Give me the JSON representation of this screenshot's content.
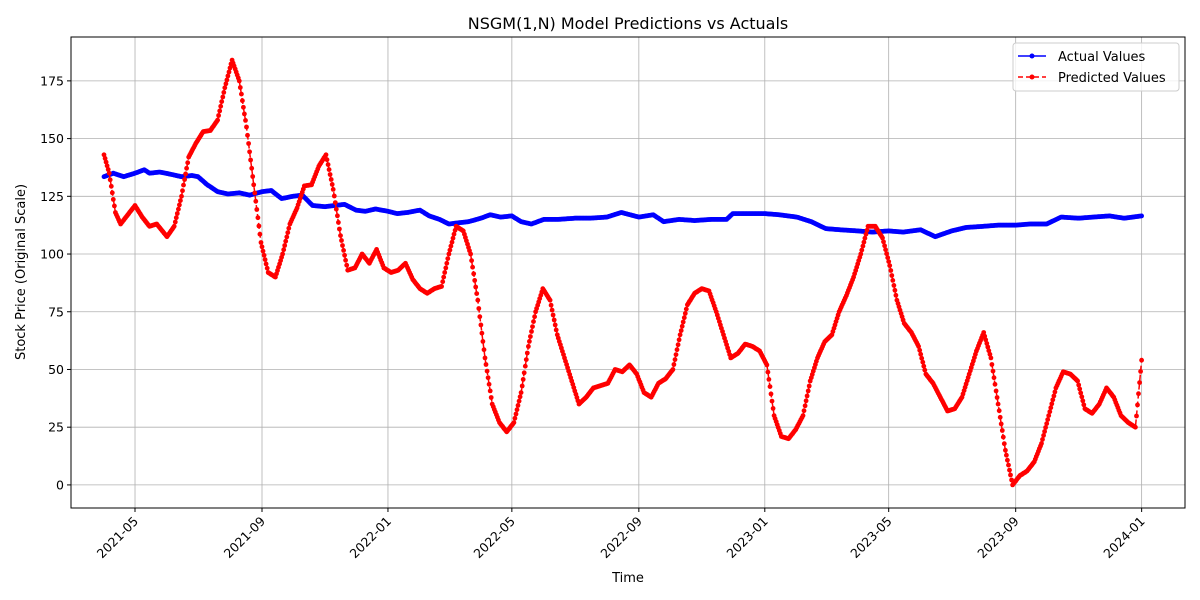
{
  "chart_data": {
    "type": "line",
    "title": "NSGM(1,N) Model Predictions vs Actuals",
    "xlabel": "Time",
    "ylabel": "Stock Price (Original Scale)",
    "xlim": [
      "2021-02-28",
      "2024-02-12"
    ],
    "ylim": [
      -10,
      194
    ],
    "grid": true,
    "legend_position": "top-right",
    "x_ticks": [
      "2021-05",
      "2021-09",
      "2022-01",
      "2022-05",
      "2022-09",
      "2023-01",
      "2023-05",
      "2023-09",
      "2024-01"
    ],
    "y_ticks": [
      0,
      25,
      50,
      75,
      100,
      125,
      150,
      175
    ],
    "series": [
      {
        "name": "Actual Values",
        "color": "#0000ff",
        "marker": "circle",
        "linestyle": "solid",
        "points": [
          [
            "2021-04-01",
            133.5
          ],
          [
            "2021-04-10",
            135.0
          ],
          [
            "2021-04-20",
            133.5
          ],
          [
            "2021-05-01",
            135.0
          ],
          [
            "2021-05-10",
            136.5
          ],
          [
            "2021-05-15",
            135.0
          ],
          [
            "2021-05-25",
            135.5
          ],
          [
            "2021-06-05",
            134.5
          ],
          [
            "2021-06-15",
            133.5
          ],
          [
            "2021-06-25",
            134.0
          ],
          [
            "2021-07-01",
            133.5
          ],
          [
            "2021-07-10",
            130.0
          ],
          [
            "2021-07-20",
            127.0
          ],
          [
            "2021-07-30",
            126.0
          ],
          [
            "2021-08-10",
            126.5
          ],
          [
            "2021-08-20",
            125.5
          ],
          [
            "2021-09-01",
            127.0
          ],
          [
            "2021-09-10",
            127.5
          ],
          [
            "2021-09-20",
            124.0
          ],
          [
            "2021-10-01",
            125.0
          ],
          [
            "2021-10-10",
            125.5
          ],
          [
            "2021-10-20",
            121.0
          ],
          [
            "2021-11-01",
            120.5
          ],
          [
            "2021-11-10",
            121.0
          ],
          [
            "2021-11-20",
            121.5
          ],
          [
            "2021-12-01",
            119.0
          ],
          [
            "2021-12-10",
            118.5
          ],
          [
            "2021-12-20",
            119.5
          ],
          [
            "2022-01-01",
            118.5
          ],
          [
            "2022-01-10",
            117.5
          ],
          [
            "2022-01-20",
            118.0
          ],
          [
            "2022-02-01",
            119.0
          ],
          [
            "2022-02-10",
            116.5
          ],
          [
            "2022-02-20",
            115.0
          ],
          [
            "2022-03-01",
            113.0
          ],
          [
            "2022-03-10",
            113.5
          ],
          [
            "2022-03-20",
            114.0
          ],
          [
            "2022-04-01",
            115.5
          ],
          [
            "2022-04-10",
            117.0
          ],
          [
            "2022-04-20",
            116.0
          ],
          [
            "2022-05-01",
            116.5
          ],
          [
            "2022-05-10",
            114.0
          ],
          [
            "2022-05-20",
            113.0
          ],
          [
            "2022-06-01",
            115.0
          ],
          [
            "2022-06-15",
            115.0
          ],
          [
            "2022-07-01",
            115.5
          ],
          [
            "2022-07-15",
            115.5
          ],
          [
            "2022-08-01",
            116.0
          ],
          [
            "2022-08-15",
            118.0
          ],
          [
            "2022-09-01",
            116.0
          ],
          [
            "2022-09-15",
            117.0
          ],
          [
            "2022-09-25",
            114.0
          ],
          [
            "2022-10-10",
            115.0
          ],
          [
            "2022-10-25",
            114.5
          ],
          [
            "2022-11-10",
            115.0
          ],
          [
            "2022-11-25",
            115.0
          ],
          [
            "2022-12-01",
            117.5
          ],
          [
            "2022-12-15",
            117.5
          ],
          [
            "2023-01-01",
            117.5
          ],
          [
            "2023-01-15",
            117.0
          ],
          [
            "2023-02-01",
            116.0
          ],
          [
            "2023-02-15",
            114.0
          ],
          [
            "2023-03-01",
            111.0
          ],
          [
            "2023-03-15",
            110.5
          ],
          [
            "2023-04-01",
            110.0
          ],
          [
            "2023-04-15",
            109.5
          ],
          [
            "2023-05-01",
            110.0
          ],
          [
            "2023-05-15",
            109.5
          ],
          [
            "2023-06-01",
            110.5
          ],
          [
            "2023-06-15",
            107.5
          ],
          [
            "2023-07-01",
            110.0
          ],
          [
            "2023-07-15",
            111.5
          ],
          [
            "2023-08-01",
            112.0
          ],
          [
            "2023-08-15",
            112.5
          ],
          [
            "2023-09-01",
            112.5
          ],
          [
            "2023-09-15",
            113.0
          ],
          [
            "2023-10-01",
            113.0
          ],
          [
            "2023-10-15",
            116.0
          ],
          [
            "2023-11-01",
            115.5
          ],
          [
            "2023-11-15",
            116.0
          ],
          [
            "2023-12-01",
            116.5
          ],
          [
            "2023-12-15",
            115.5
          ],
          [
            "2024-01-01",
            116.5
          ]
        ]
      },
      {
        "name": "Predicted Values",
        "color": "#ff0000",
        "marker": "circle",
        "linestyle": "dashed",
        "points": [
          [
            "2021-04-01",
            143.0
          ],
          [
            "2021-04-06",
            135.0
          ],
          [
            "2021-04-12",
            118.0
          ],
          [
            "2021-04-17",
            113.0
          ],
          [
            "2021-04-24",
            117.0
          ],
          [
            "2021-05-01",
            121.0
          ],
          [
            "2021-05-08",
            116.0
          ],
          [
            "2021-05-15",
            112.0
          ],
          [
            "2021-05-22",
            113.0
          ],
          [
            "2021-06-01",
            107.5
          ],
          [
            "2021-06-08",
            112.0
          ],
          [
            "2021-06-15",
            125.0
          ],
          [
            "2021-06-22",
            142.0
          ],
          [
            "2021-06-29",
            148.0
          ],
          [
            "2021-07-06",
            153.0
          ],
          [
            "2021-07-13",
            153.5
          ],
          [
            "2021-07-20",
            158.0
          ],
          [
            "2021-07-27",
            172.0
          ],
          [
            "2021-08-03",
            184.0
          ],
          [
            "2021-08-10",
            175.0
          ],
          [
            "2021-08-17",
            155.0
          ],
          [
            "2021-08-24",
            130.0
          ],
          [
            "2021-08-31",
            105.0
          ],
          [
            "2021-09-07",
            92.0
          ],
          [
            "2021-09-14",
            90.0
          ],
          [
            "2021-09-21",
            100.0
          ],
          [
            "2021-09-28",
            113.0
          ],
          [
            "2021-10-05",
            120.0
          ],
          [
            "2021-10-12",
            129.5
          ],
          [
            "2021-10-19",
            130.0
          ],
          [
            "2021-10-26",
            138.0
          ],
          [
            "2021-11-02",
            143.0
          ],
          [
            "2021-11-09",
            128.0
          ],
          [
            "2021-11-16",
            108.0
          ],
          [
            "2021-11-23",
            93.0
          ],
          [
            "2021-11-30",
            94.0
          ],
          [
            "2021-12-07",
            100.0
          ],
          [
            "2021-12-14",
            96.0
          ],
          [
            "2021-12-21",
            102.0
          ],
          [
            "2021-12-28",
            94.0
          ],
          [
            "2022-01-04",
            92.0
          ],
          [
            "2022-01-11",
            93.0
          ],
          [
            "2022-01-18",
            96.0
          ],
          [
            "2022-01-25",
            89.0
          ],
          [
            "2022-02-01",
            85.0
          ],
          [
            "2022-02-08",
            83.0
          ],
          [
            "2022-02-15",
            85.0
          ],
          [
            "2022-02-22",
            86.0
          ],
          [
            "2022-03-01",
            100.0
          ],
          [
            "2022-03-08",
            112.0
          ],
          [
            "2022-03-15",
            110.0
          ],
          [
            "2022-03-22",
            100.0
          ],
          [
            "2022-03-29",
            80.0
          ],
          [
            "2022-04-05",
            55.0
          ],
          [
            "2022-04-12",
            35.0
          ],
          [
            "2022-04-19",
            27.0
          ],
          [
            "2022-04-26",
            23.0
          ],
          [
            "2022-05-03",
            27.0
          ],
          [
            "2022-05-10",
            40.0
          ],
          [
            "2022-05-17",
            60.0
          ],
          [
            "2022-05-24",
            75.0
          ],
          [
            "2022-05-31",
            85.0
          ],
          [
            "2022-06-07",
            80.0
          ],
          [
            "2022-06-14",
            65.0
          ],
          [
            "2022-06-21",
            55.0
          ],
          [
            "2022-06-28",
            45.0
          ],
          [
            "2022-07-05",
            35.0
          ],
          [
            "2022-07-12",
            38.0
          ],
          [
            "2022-07-19",
            42.0
          ],
          [
            "2022-07-26",
            43.0
          ],
          [
            "2022-08-02",
            44.0
          ],
          [
            "2022-08-09",
            50.0
          ],
          [
            "2022-08-16",
            49.0
          ],
          [
            "2022-08-23",
            52.0
          ],
          [
            "2022-08-30",
            48.0
          ],
          [
            "2022-09-06",
            40.0
          ],
          [
            "2022-09-13",
            38.0
          ],
          [
            "2022-09-20",
            44.0
          ],
          [
            "2022-09-27",
            46.0
          ],
          [
            "2022-10-04",
            50.0
          ],
          [
            "2022-10-11",
            65.0
          ],
          [
            "2022-10-18",
            78.0
          ],
          [
            "2022-10-25",
            83.0
          ],
          [
            "2022-11-01",
            85.0
          ],
          [
            "2022-11-08",
            84.0
          ],
          [
            "2022-11-15",
            75.0
          ],
          [
            "2022-11-22",
            65.0
          ],
          [
            "2022-11-29",
            55.0
          ],
          [
            "2022-12-06",
            57.0
          ],
          [
            "2022-12-13",
            61.0
          ],
          [
            "2022-12-20",
            60.0
          ],
          [
            "2022-12-27",
            58.0
          ],
          [
            "2023-01-03",
            52.0
          ],
          [
            "2023-01-10",
            30.0
          ],
          [
            "2023-01-17",
            21.0
          ],
          [
            "2023-01-24",
            20.0
          ],
          [
            "2023-01-31",
            24.0
          ],
          [
            "2023-02-07",
            30.0
          ],
          [
            "2023-02-14",
            45.0
          ],
          [
            "2023-02-21",
            55.0
          ],
          [
            "2023-02-28",
            62.0
          ],
          [
            "2023-03-07",
            65.0
          ],
          [
            "2023-03-14",
            75.0
          ],
          [
            "2023-03-21",
            82.0
          ],
          [
            "2023-03-28",
            90.0
          ],
          [
            "2023-04-04",
            100.0
          ],
          [
            "2023-04-11",
            112.0
          ],
          [
            "2023-04-18",
            112.0
          ],
          [
            "2023-04-25",
            107.0
          ],
          [
            "2023-05-02",
            95.0
          ],
          [
            "2023-05-09",
            80.0
          ],
          [
            "2023-05-16",
            70.0
          ],
          [
            "2023-05-23",
            66.0
          ],
          [
            "2023-05-30",
            60.0
          ],
          [
            "2023-06-06",
            48.0
          ],
          [
            "2023-06-13",
            44.0
          ],
          [
            "2023-06-20",
            38.0
          ],
          [
            "2023-06-27",
            32.0
          ],
          [
            "2023-07-04",
            33.0
          ],
          [
            "2023-07-11",
            38.0
          ],
          [
            "2023-07-18",
            48.0
          ],
          [
            "2023-07-25",
            58.0
          ],
          [
            "2023-08-01",
            66.0
          ],
          [
            "2023-08-08",
            55.0
          ],
          [
            "2023-08-15",
            35.0
          ],
          [
            "2023-08-22",
            15.0
          ],
          [
            "2023-08-29",
            0.0
          ],
          [
            "2023-09-05",
            4.0
          ],
          [
            "2023-09-12",
            6.0
          ],
          [
            "2023-09-19",
            10.0
          ],
          [
            "2023-09-26",
            18.0
          ],
          [
            "2023-10-03",
            30.0
          ],
          [
            "2023-10-10",
            42.0
          ],
          [
            "2023-10-17",
            49.0
          ],
          [
            "2023-10-24",
            48.0
          ],
          [
            "2023-10-31",
            45.0
          ],
          [
            "2023-11-07",
            33.0
          ],
          [
            "2023-11-14",
            31.0
          ],
          [
            "2023-11-21",
            35.0
          ],
          [
            "2023-11-28",
            42.0
          ],
          [
            "2023-12-05",
            38.0
          ],
          [
            "2023-12-12",
            30.0
          ],
          [
            "2023-12-19",
            27.0
          ],
          [
            "2023-12-26",
            25.0
          ],
          [
            "2024-01-01",
            54.0
          ]
        ]
      }
    ]
  }
}
